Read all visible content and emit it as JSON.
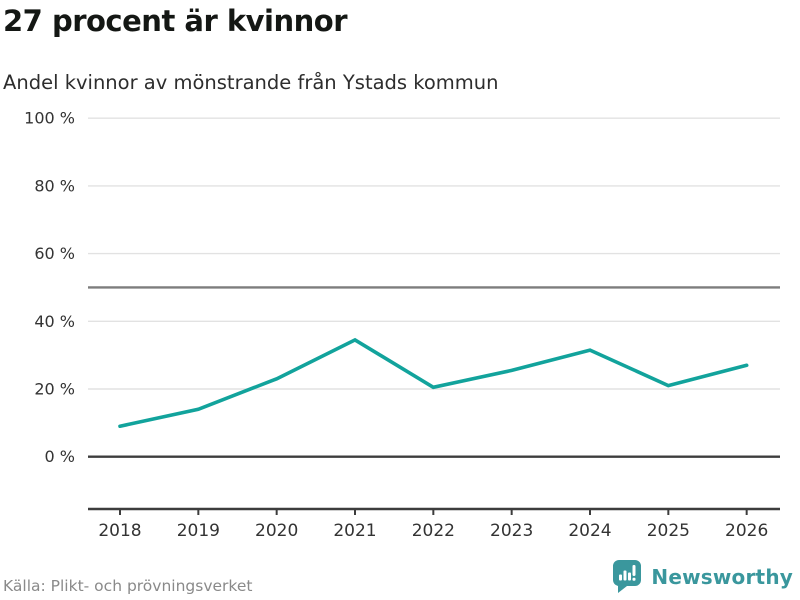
{
  "header": {
    "title": "27 procent är kvinnor",
    "subtitle": "Andel kvinnor av mönstrande från Ystads kommun"
  },
  "chart_data": {
    "type": "line",
    "x": [
      2018,
      2019,
      2020,
      2021,
      2022,
      2023,
      2024,
      2025,
      2026
    ],
    "series": [
      {
        "name": "Andel kvinnor av mönstrande",
        "values": [
          9,
          14,
          23,
          34.5,
          20.5,
          25.5,
          31.5,
          21,
          27
        ]
      }
    ],
    "title": "27 procent är kvinnor",
    "subtitle": "Andel kvinnor av mönstrande från Ystads kommun",
    "xlabel": "",
    "ylabel": "",
    "unit": "%",
    "ylim": [
      0,
      100
    ],
    "yticks": [
      0,
      20,
      40,
      60,
      80,
      100
    ],
    "ytick_suffix": " %",
    "reference_line": 50,
    "grid": "horizontal",
    "legend_position": "none",
    "colors": {
      "line": "#12a39c",
      "grid": "#e2e2e2",
      "reference": "#7d7d7d",
      "axis": "#3d3d3d",
      "tick_text": "#333333"
    }
  },
  "footer": {
    "source": "Källa: Plikt- och prövningsverket",
    "brand": {
      "name": "Newsworthy",
      "color": "#3a979d",
      "icon": "newsworthy-speech-bubble-barchart-icon"
    }
  }
}
